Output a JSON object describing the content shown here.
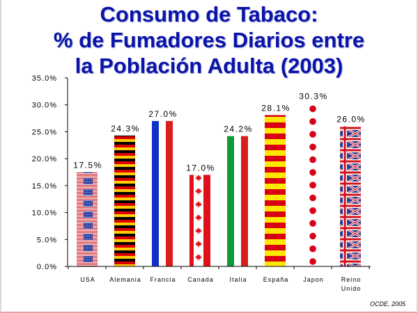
{
  "title_lines": [
    "Consumo de Tabaco:",
    "% de Fumadores Diarios entre",
    "la Población Adulta (2003)"
  ],
  "source": "OCDE, 2005",
  "colors": {
    "title": "#0a14a8",
    "usa_stripe_red": "#d0202a",
    "usa_canton": "#2a3a9c",
    "germany_black": "#000000",
    "germany_red": "#dd0000",
    "germany_gold": "#ffce00",
    "france_blue": "#1030c8",
    "france_red": "#d81e1e",
    "canada_red": "#e0101a",
    "italy_green": "#0f9a38",
    "italy_red": "#d81e1e",
    "spain_red": "#d80012",
    "spain_yellow": "#ffe800",
    "japan_red": "#d80018",
    "uk_blue": "#2a3a90",
    "uk_red": "#d0101a"
  },
  "chart_data": {
    "type": "bar",
    "categories": [
      "USA",
      "Alemania",
      "Francia",
      "Canada",
      "Italia",
      "España",
      "Japon",
      "Reino Unido"
    ],
    "category_lines": [
      [
        "USA"
      ],
      [
        "Alemania"
      ],
      [
        "Francia"
      ],
      [
        "Canada"
      ],
      [
        "Italia"
      ],
      [
        "España"
      ],
      [
        "Japon"
      ],
      [
        "Reino",
        "Unido"
      ]
    ],
    "values": [
      17.5,
      24.3,
      27.0,
      17.0,
      24.2,
      28.1,
      30.3,
      26.0
    ],
    "data_labels": [
      "17.5%",
      "24.3%",
      "27.0%",
      "17.0%",
      "24.2%",
      "28.1%",
      "30.3%",
      "26.0%"
    ],
    "fills": [
      "flag-usa",
      "flag-germany",
      "flag-france",
      "flag-canada",
      "flag-italy",
      "flag-spain",
      "flag-japan",
      "flag-uk"
    ],
    "ylim": [
      0,
      35
    ],
    "yticks": [
      0,
      5,
      10,
      15,
      20,
      25,
      30,
      35
    ],
    "ytick_labels": [
      "0.0%",
      "5.0%",
      "10.0%",
      "15.0%",
      "20.0%",
      "25.0%",
      "30.0%",
      "35.0%"
    ],
    "xlabel": "",
    "ylabel": "",
    "grid": false
  }
}
